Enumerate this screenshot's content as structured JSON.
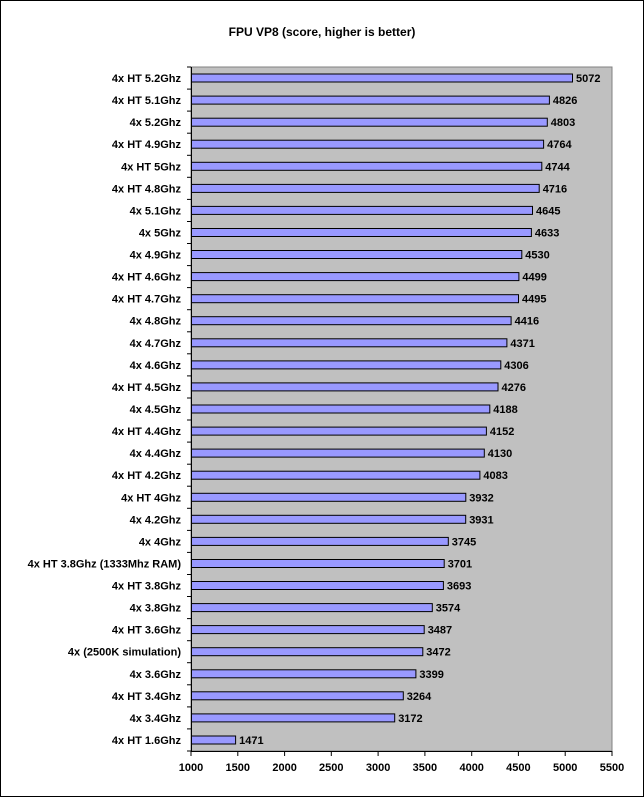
{
  "chart_data": {
    "type": "bar",
    "orientation": "horizontal",
    "title": "FPU VP8 (score, higher is better)",
    "xlabel": "",
    "ylabel": "",
    "xlim": [
      1000,
      5500
    ],
    "xticks": [
      1000,
      1500,
      2000,
      2500,
      3000,
      3500,
      4000,
      4500,
      5000,
      5500
    ],
    "grid": false,
    "legend": "none",
    "colors": {
      "bar": "#9999ff",
      "plot_area": "#c0c0c0",
      "bar_outline": "#000000"
    },
    "categories": [
      "4x HT 5.2Ghz",
      "4x HT 5.1Ghz",
      "4x 5.2Ghz",
      "4x HT 4.9Ghz",
      "4x HT 5Ghz",
      "4x HT 4.8Ghz",
      "4x 5.1Ghz",
      "4x 5Ghz",
      "4x 4.9Ghz",
      "4x HT 4.6Ghz",
      "4x HT 4.7Ghz",
      "4x 4.8Ghz",
      "4x 4.7Ghz",
      "4x 4.6Ghz",
      "4x HT 4.5Ghz",
      "4x 4.5Ghz",
      "4x HT 4.4Ghz",
      "4x 4.4Ghz",
      "4x HT 4.2Ghz",
      "4x HT 4Ghz",
      "4x 4.2Ghz",
      "4x 4Ghz",
      "4x HT 3.8Ghz (1333Mhz RAM)",
      "4x HT 3.8Ghz",
      "4x 3.8Ghz",
      "4x HT 3.6Ghz",
      "4x (2500K simulation)",
      "4x 3.6Ghz",
      "4x HT 3.4Ghz",
      "4x 3.4Ghz",
      "4x HT 1.6Ghz"
    ],
    "values": [
      5072,
      4826,
      4803,
      4764,
      4744,
      4716,
      4645,
      4633,
      4530,
      4499,
      4495,
      4416,
      4371,
      4306,
      4276,
      4188,
      4152,
      4130,
      4083,
      3932,
      3931,
      3745,
      3701,
      3693,
      3574,
      3487,
      3472,
      3399,
      3264,
      3172,
      1471
    ]
  }
}
